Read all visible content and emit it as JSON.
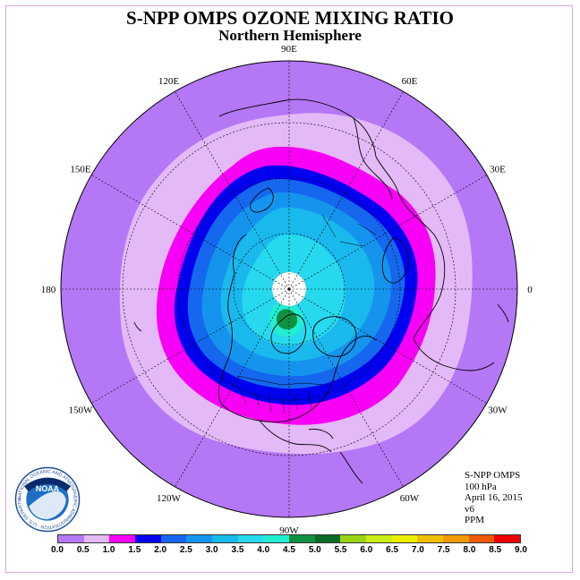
{
  "title": "S-NPP OMPS OZONE MIXING RATIO",
  "subtitle": "Northern Hemisphere",
  "longitude_labels": [
    "0",
    "30E",
    "60E",
    "90E",
    "120E",
    "150E",
    "180",
    "150W",
    "120W",
    "90W",
    "60W",
    "30W"
  ],
  "info": {
    "instrument": "S-NPP OMPS",
    "level": "100 hPa",
    "date": "April 16, 2015",
    "version": "v6",
    "units": "PPM"
  },
  "logo": {
    "text": "NOAA",
    "ring_text": "NATIONAL OCEANIC AND ATMOSPHERIC ADMINISTRATION · U.S. DEPARTMENT OF COMMERCE"
  },
  "colorbar": {
    "ticks": [
      "0.0",
      "0.5",
      "1.0",
      "1.5",
      "2.0",
      "2.5",
      "3.0",
      "3.5",
      "4.0",
      "4.5",
      "5.0",
      "5.5",
      "6.0",
      "6.5",
      "7.0",
      "7.5",
      "8.0",
      "8.5",
      "9.0"
    ],
    "colors": [
      "#b477f5",
      "#e3b9f7",
      "#f700f5",
      "#0000ee",
      "#1567ee",
      "#1594ee",
      "#19b9ee",
      "#27d9ee",
      "#22eed2",
      "#0f9142",
      "#0d6a25",
      "#9ad316",
      "#c8ee16",
      "#eeee00",
      "#eebe00",
      "#ee9a00",
      "#ee5a00",
      "#ee0000",
      "#8b4c3c"
    ]
  }
}
